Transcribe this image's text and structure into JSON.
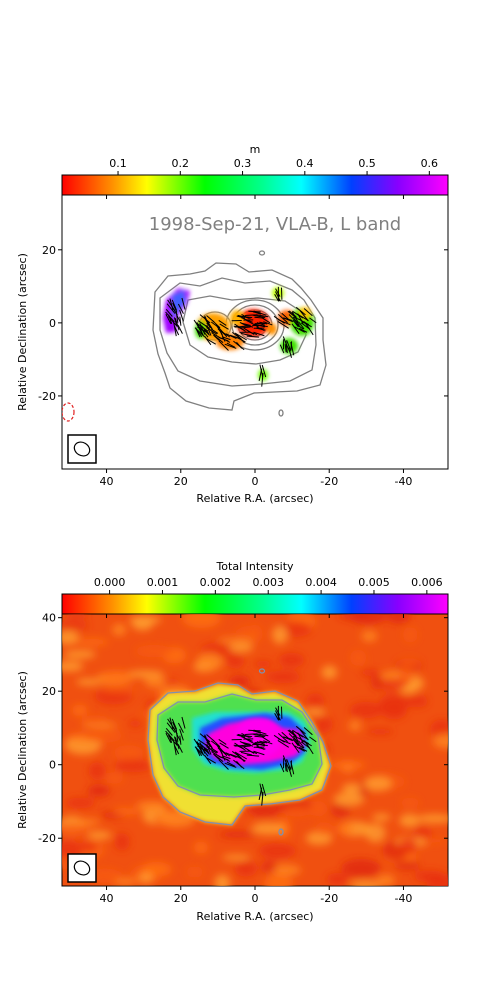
{
  "chart_data": [
    {
      "type": "polarization_map",
      "panel": "top",
      "annotation": "1998-Sep-21, VLA-B, L band",
      "xlabel": "Relative R.A. (arcsec)",
      "ylabel": "Relative Declination (arcsec)",
      "xlim": [
        52,
        -52
      ],
      "ylim": [
        -40,
        35
      ],
      "xticks": [
        40,
        20,
        0,
        -20,
        -40
      ],
      "xtick_labels": [
        "40",
        "20",
        "0",
        "-20",
        "-40"
      ],
      "yticks": [
        20,
        0,
        -20
      ],
      "ytick_labels": [
        "20",
        "0",
        "-20"
      ],
      "colorbar": {
        "label": "m",
        "position": "top",
        "range": [
          0.01,
          0.63
        ],
        "ticks": [
          0.1,
          0.2,
          0.3,
          0.4,
          0.5,
          0.6
        ],
        "tick_labels": [
          "0.1",
          "0.2",
          "0.3",
          "0.4",
          "0.5",
          "0.6"
        ],
        "colormap": "gist_rainbow_r"
      },
      "background": "white",
      "contour_color": "#808080",
      "beam_present": true,
      "highlight_color": "#e02020",
      "vector_color": "#000000"
    },
    {
      "type": "intensity_map",
      "panel": "bottom",
      "xlabel": "Relative R.A. (arcsec)",
      "ylabel": "Relative Declination (arcsec)",
      "xlim": [
        52,
        -52
      ],
      "ylim": [
        -33,
        41
      ],
      "xticks": [
        40,
        20,
        0,
        -20,
        -40
      ],
      "xtick_labels": [
        "40",
        "20",
        "0",
        "-20",
        "-40"
      ],
      "yticks": [
        40,
        20,
        0,
        -20
      ],
      "ytick_labels": [
        "40",
        "20",
        "0",
        "-20"
      ],
      "colorbar": {
        "label": "Total Intensity",
        "position": "top",
        "range": [
          -0.0009,
          0.0064
        ],
        "ticks": [
          0.0,
          0.001,
          0.002,
          0.003,
          0.004,
          0.005,
          0.006
        ],
        "tick_labels": [
          "0.000",
          "0.001",
          "0.002",
          "0.003",
          "0.004",
          "0.005",
          "0.006"
        ],
        "colormap": "gist_rainbow_r"
      },
      "background": "#f05010",
      "contour_color": "#8090b0",
      "beam_present": true,
      "vector_color": "#000000"
    }
  ]
}
